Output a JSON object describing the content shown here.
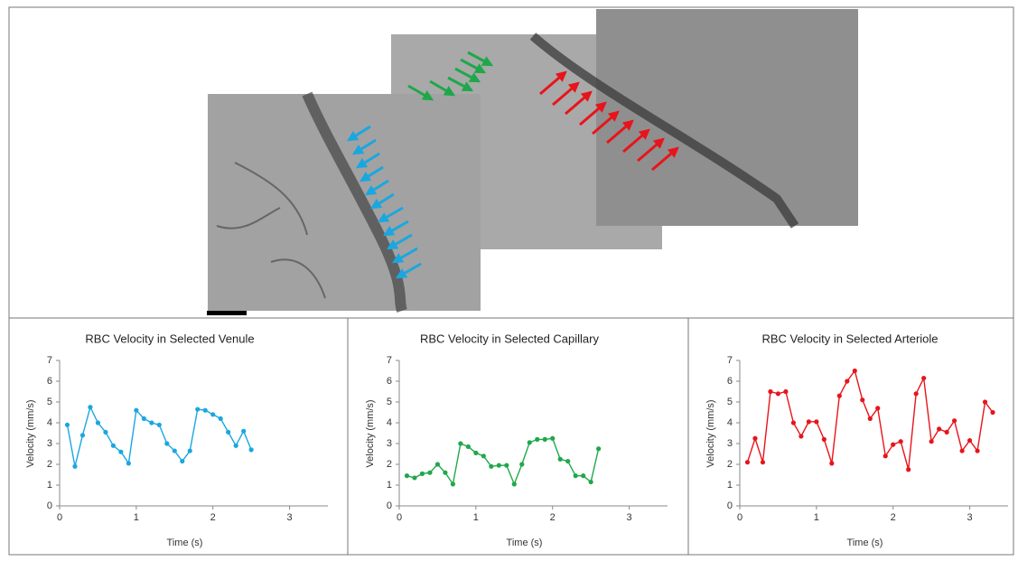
{
  "chart_data": [
    {
      "type": "line",
      "title": "RBC Velocity in Selected Venule",
      "x_label": "Time (s)",
      "y_label": "Velocity (mm/s)",
      "color": "#1aa7e0",
      "x": [
        0.1,
        0.2,
        0.3,
        0.4,
        0.5,
        0.6,
        0.7,
        0.8,
        0.9,
        1.0,
        1.1,
        1.2,
        1.3,
        1.4,
        1.5,
        1.6,
        1.7,
        1.8,
        1.9,
        2.0,
        2.1,
        2.2,
        2.3,
        2.4,
        2.5
      ],
      "values": [
        3.9,
        1.9,
        3.4,
        4.75,
        4.0,
        3.55,
        2.9,
        2.6,
        2.05,
        4.6,
        4.2,
        4.0,
        3.9,
        3.0,
        2.65,
        2.15,
        2.65,
        4.65,
        4.6,
        4.4,
        4.2,
        3.55,
        2.9,
        3.6,
        2.7
      ],
      "xlim": [
        0,
        3.5
      ],
      "xticks": [
        0,
        1,
        2,
        3
      ],
      "ylim": [
        0,
        7
      ],
      "yticks": [
        0,
        1,
        2,
        3,
        4,
        5,
        6,
        7
      ]
    },
    {
      "type": "line",
      "title": "RBC Velocity in Selected Capillary",
      "x_label": "Time (s)",
      "y_label": "Velocity (mm/s)",
      "color": "#1fa84a",
      "x": [
        0.1,
        0.2,
        0.3,
        0.4,
        0.5,
        0.6,
        0.7,
        0.8,
        0.9,
        1.0,
        1.1,
        1.2,
        1.3,
        1.4,
        1.5,
        1.6,
        1.7,
        1.8,
        1.9,
        2.0,
        2.1,
        2.2,
        2.3,
        2.4,
        2.5,
        2.6
      ],
      "values": [
        1.45,
        1.35,
        1.55,
        1.6,
        2.0,
        1.6,
        1.05,
        3.0,
        2.85,
        2.55,
        2.4,
        1.9,
        1.95,
        1.95,
        1.05,
        2.0,
        3.05,
        3.2,
        3.2,
        3.25,
        2.25,
        2.15,
        1.45,
        1.45,
        1.15,
        2.75
      ],
      "xlim": [
        0,
        3.5
      ],
      "xticks": [
        0,
        1,
        2,
        3
      ],
      "ylim": [
        0,
        7
      ],
      "yticks": [
        0,
        1,
        2,
        3,
        4,
        5,
        6,
        7
      ]
    },
    {
      "type": "line",
      "title": "RBC Velocity in Selected Arteriole",
      "x_label": "Time (s)",
      "y_label": "Velocity (mm/s)",
      "color": "#e8141b",
      "x": [
        0.1,
        0.2,
        0.3,
        0.4,
        0.5,
        0.6,
        0.7,
        0.8,
        0.9,
        1.0,
        1.1,
        1.2,
        1.3,
        1.4,
        1.5,
        1.6,
        1.7,
        1.8,
        1.9,
        2.0,
        2.1,
        2.2,
        2.3,
        2.4,
        2.5,
        2.6,
        2.7,
        2.8,
        2.9,
        3.0,
        3.1,
        3.2,
        3.3
      ],
      "values": [
        2.1,
        3.25,
        2.1,
        5.5,
        5.4,
        5.5,
        4.0,
        3.35,
        4.05,
        4.05,
        3.2,
        2.05,
        5.3,
        6.0,
        6.5,
        5.1,
        4.2,
        4.7,
        2.4,
        2.95,
        3.1,
        1.75,
        5.4,
        6.15,
        3.1,
        3.7,
        3.55,
        4.1,
        2.65,
        3.15,
        2.65,
        5.0,
        4.5
      ],
      "xlim": [
        0,
        3.5
      ],
      "xticks": [
        0,
        1,
        2,
        3
      ],
      "ylim": [
        0,
        7
      ],
      "yticks": [
        0,
        1,
        2,
        3,
        4,
        5,
        6,
        7
      ]
    }
  ]
}
